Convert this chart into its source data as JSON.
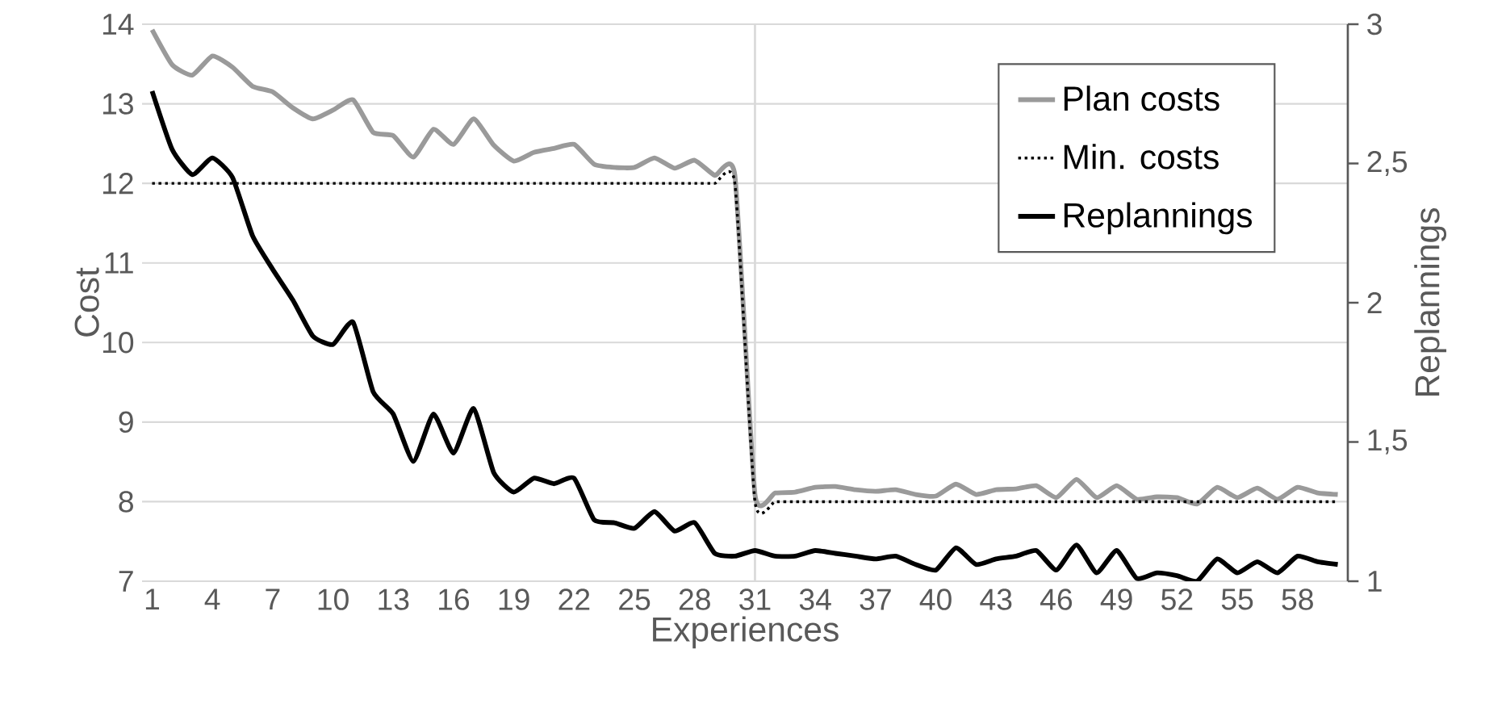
{
  "chart_data": {
    "type": "line",
    "xlabel": "Experiences",
    "ylabel": "Cost",
    "y2label": "Replannings",
    "x": [
      1,
      2,
      3,
      4,
      5,
      6,
      7,
      8,
      9,
      10,
      11,
      12,
      13,
      14,
      15,
      16,
      17,
      18,
      19,
      20,
      21,
      22,
      23,
      24,
      25,
      26,
      27,
      28,
      29,
      30,
      31,
      32,
      33,
      34,
      35,
      36,
      37,
      38,
      39,
      40,
      41,
      42,
      43,
      44,
      45,
      46,
      47,
      48,
      49,
      50,
      51,
      52,
      53,
      54,
      55,
      56,
      57,
      58,
      59,
      60
    ],
    "xlim": [
      0.5,
      60.5
    ],
    "xticks": [
      1,
      4,
      7,
      10,
      13,
      16,
      19,
      22,
      25,
      28,
      31,
      34,
      37,
      40,
      43,
      46,
      49,
      52,
      55,
      58
    ],
    "ylim": [
      7,
      14
    ],
    "yticks": [
      7,
      8,
      9,
      10,
      11,
      12,
      13,
      14
    ],
    "y2lim": [
      1,
      3
    ],
    "y2ticks": [
      1,
      {
        "value": 1.5,
        "label": "1,5"
      },
      2,
      {
        "value": 2.5,
        "label": "2,5"
      },
      3
    ],
    "grid": "y",
    "legend": "top right",
    "ref_lines": [
      {
        "axis": "x",
        "value": 31,
        "color": "#d9d9d9"
      }
    ],
    "series": [
      {
        "name": "Plan costs",
        "color": "#9a9a9a",
        "line_style": "solid",
        "values": [
          13.93,
          13.49,
          13.36,
          13.6,
          13.46,
          13.22,
          13.15,
          12.95,
          12.81,
          12.92,
          13.05,
          12.64,
          12.6,
          12.33,
          12.68,
          12.49,
          12.81,
          12.48,
          12.28,
          12.39,
          12.44,
          12.49,
          12.24,
          12.2,
          12.2,
          12.32,
          12.19,
          12.29,
          12.1,
          12.1,
          8.09,
          8.11,
          8.12,
          8.18,
          8.19,
          8.15,
          8.13,
          8.15,
          8.09,
          8.07,
          8.22,
          8.09,
          8.15,
          8.16,
          8.2,
          8.05,
          8.28,
          8.05,
          8.2,
          8.03,
          8.06,
          8.05,
          7.97,
          8.18,
          8.05,
          8.17,
          8.03,
          8.18,
          8.11,
          8.09
        ]
      },
      {
        "name": "Min. costs",
        "color": "#000000",
        "line_style": "dotted",
        "values": [
          12,
          12,
          12,
          12,
          12,
          12,
          12,
          12,
          12,
          12,
          12,
          12,
          12,
          12,
          12,
          12,
          12,
          12,
          12,
          12,
          12,
          12,
          12,
          12,
          12,
          12,
          12,
          12,
          12,
          12,
          8,
          8,
          8,
          8,
          8,
          8,
          8,
          8,
          8,
          8,
          8,
          8,
          8,
          8,
          8,
          8,
          8,
          8,
          8,
          8,
          8,
          8,
          8,
          8,
          8,
          8,
          8,
          8,
          8,
          8
        ]
      },
      {
        "name": "Replannings",
        "color": "#000000",
        "line_style": "solid",
        "axis": "y2",
        "values": [
          2.76,
          2.55,
          2.46,
          2.52,
          2.45,
          2.24,
          2.12,
          2.01,
          1.88,
          1.85,
          1.93,
          1.68,
          1.6,
          1.43,
          1.6,
          1.46,
          1.62,
          1.39,
          1.32,
          1.37,
          1.35,
          1.37,
          1.22,
          1.21,
          1.19,
          1.25,
          1.18,
          1.21,
          1.1,
          1.09,
          1.11,
          1.09,
          1.09,
          1.11,
          1.1,
          1.09,
          1.08,
          1.09,
          1.06,
          1.04,
          1.12,
          1.06,
          1.08,
          1.09,
          1.11,
          1.04,
          1.13,
          1.03,
          1.11,
          1.01,
          1.03,
          1.02,
          1.0,
          1.08,
          1.03,
          1.07,
          1.03,
          1.09,
          1.07,
          1.06
        ]
      }
    ]
  }
}
